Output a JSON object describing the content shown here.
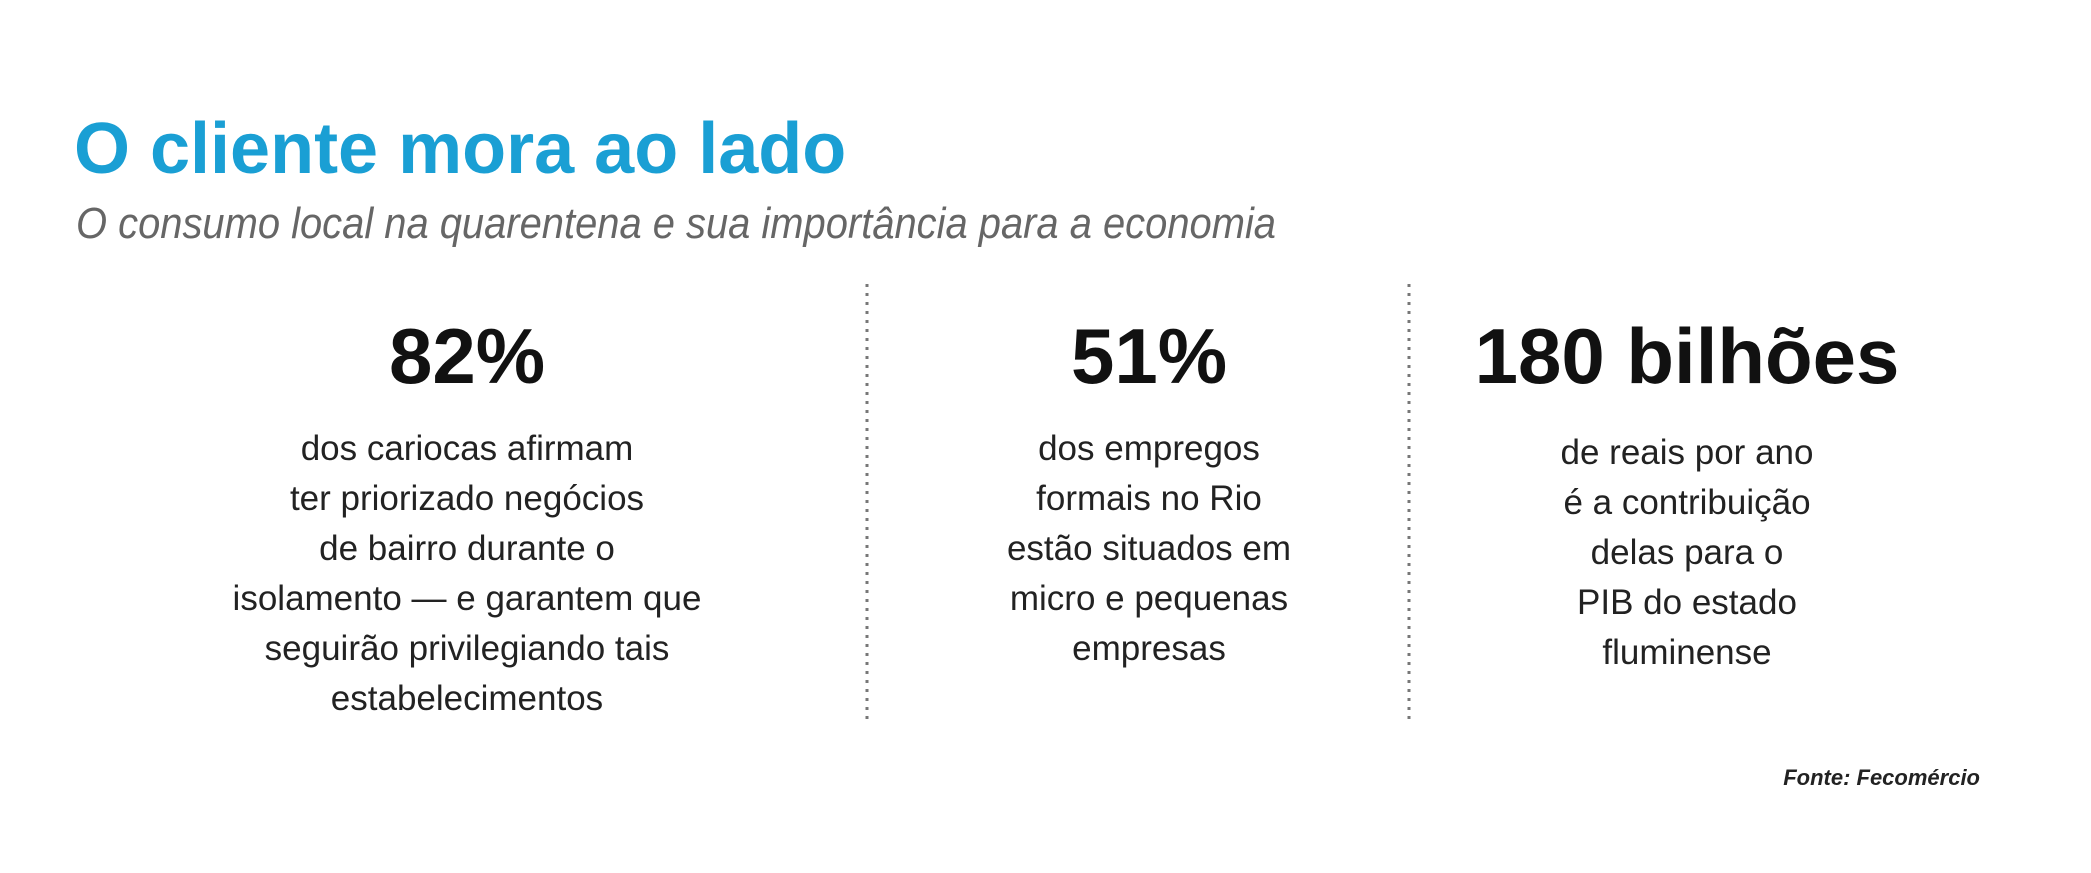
{
  "header": {
    "title": "O cliente mora ao lado",
    "subtitle": "O consumo local na quarentena e sua importância para a economia"
  },
  "stats": [
    {
      "value": "82%",
      "lines": [
        "dos cariocas afirmam",
        "ter priorizado negócios",
        "de bairro durante o",
        "isolamento — e garantem que",
        "seguirão privilegiando tais",
        "estabelecimentos"
      ]
    },
    {
      "value": "51%",
      "lines": [
        "dos empregos",
        "formais no Rio",
        "estão situados em",
        "micro e pequenas",
        "empresas"
      ]
    },
    {
      "value": "180 bilhões",
      "lines": [
        "de reais por ano",
        "é a contribuição",
        "delas para o",
        "PIB do estado",
        "fluminense"
      ]
    }
  ],
  "source": "Fonte: Fecomércio"
}
